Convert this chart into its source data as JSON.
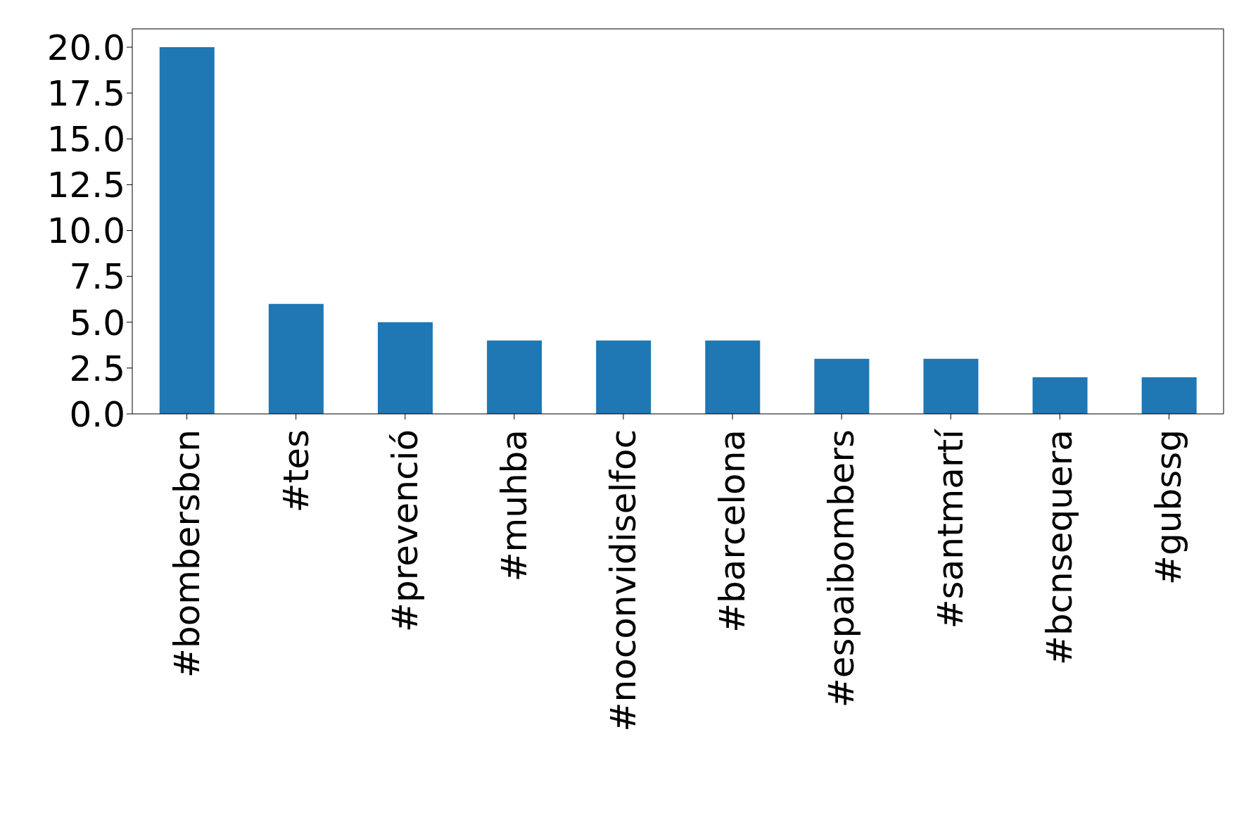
{
  "chart_data": {
    "type": "bar",
    "categories": [
      "#bombersbcn",
      "#tes",
      "#prevenció",
      "#muhba",
      "#noconvidiselfoc",
      "#barcelona",
      "#espaibombers",
      "#santmartí",
      "#bcnsequera",
      "#gubssg"
    ],
    "values": [
      20,
      6,
      5,
      4,
      4,
      4,
      3,
      3,
      2,
      2
    ],
    "color": "#1f77b4",
    "ylim": [
      0,
      21
    ],
    "yticks": [
      {
        "value": 0,
        "label": "0.0"
      },
      {
        "value": 2.5,
        "label": "2.5"
      },
      {
        "value": 5,
        "label": "5.0"
      },
      {
        "value": 7.5,
        "label": "7.5"
      },
      {
        "value": 10,
        "label": "10.0"
      },
      {
        "value": 12.5,
        "label": "12.5"
      },
      {
        "value": 15,
        "label": "15.0"
      },
      {
        "value": 17.5,
        "label": "17.5"
      },
      {
        "value": 20,
        "label": "20.0"
      }
    ],
    "grid": false,
    "legend": false
  }
}
